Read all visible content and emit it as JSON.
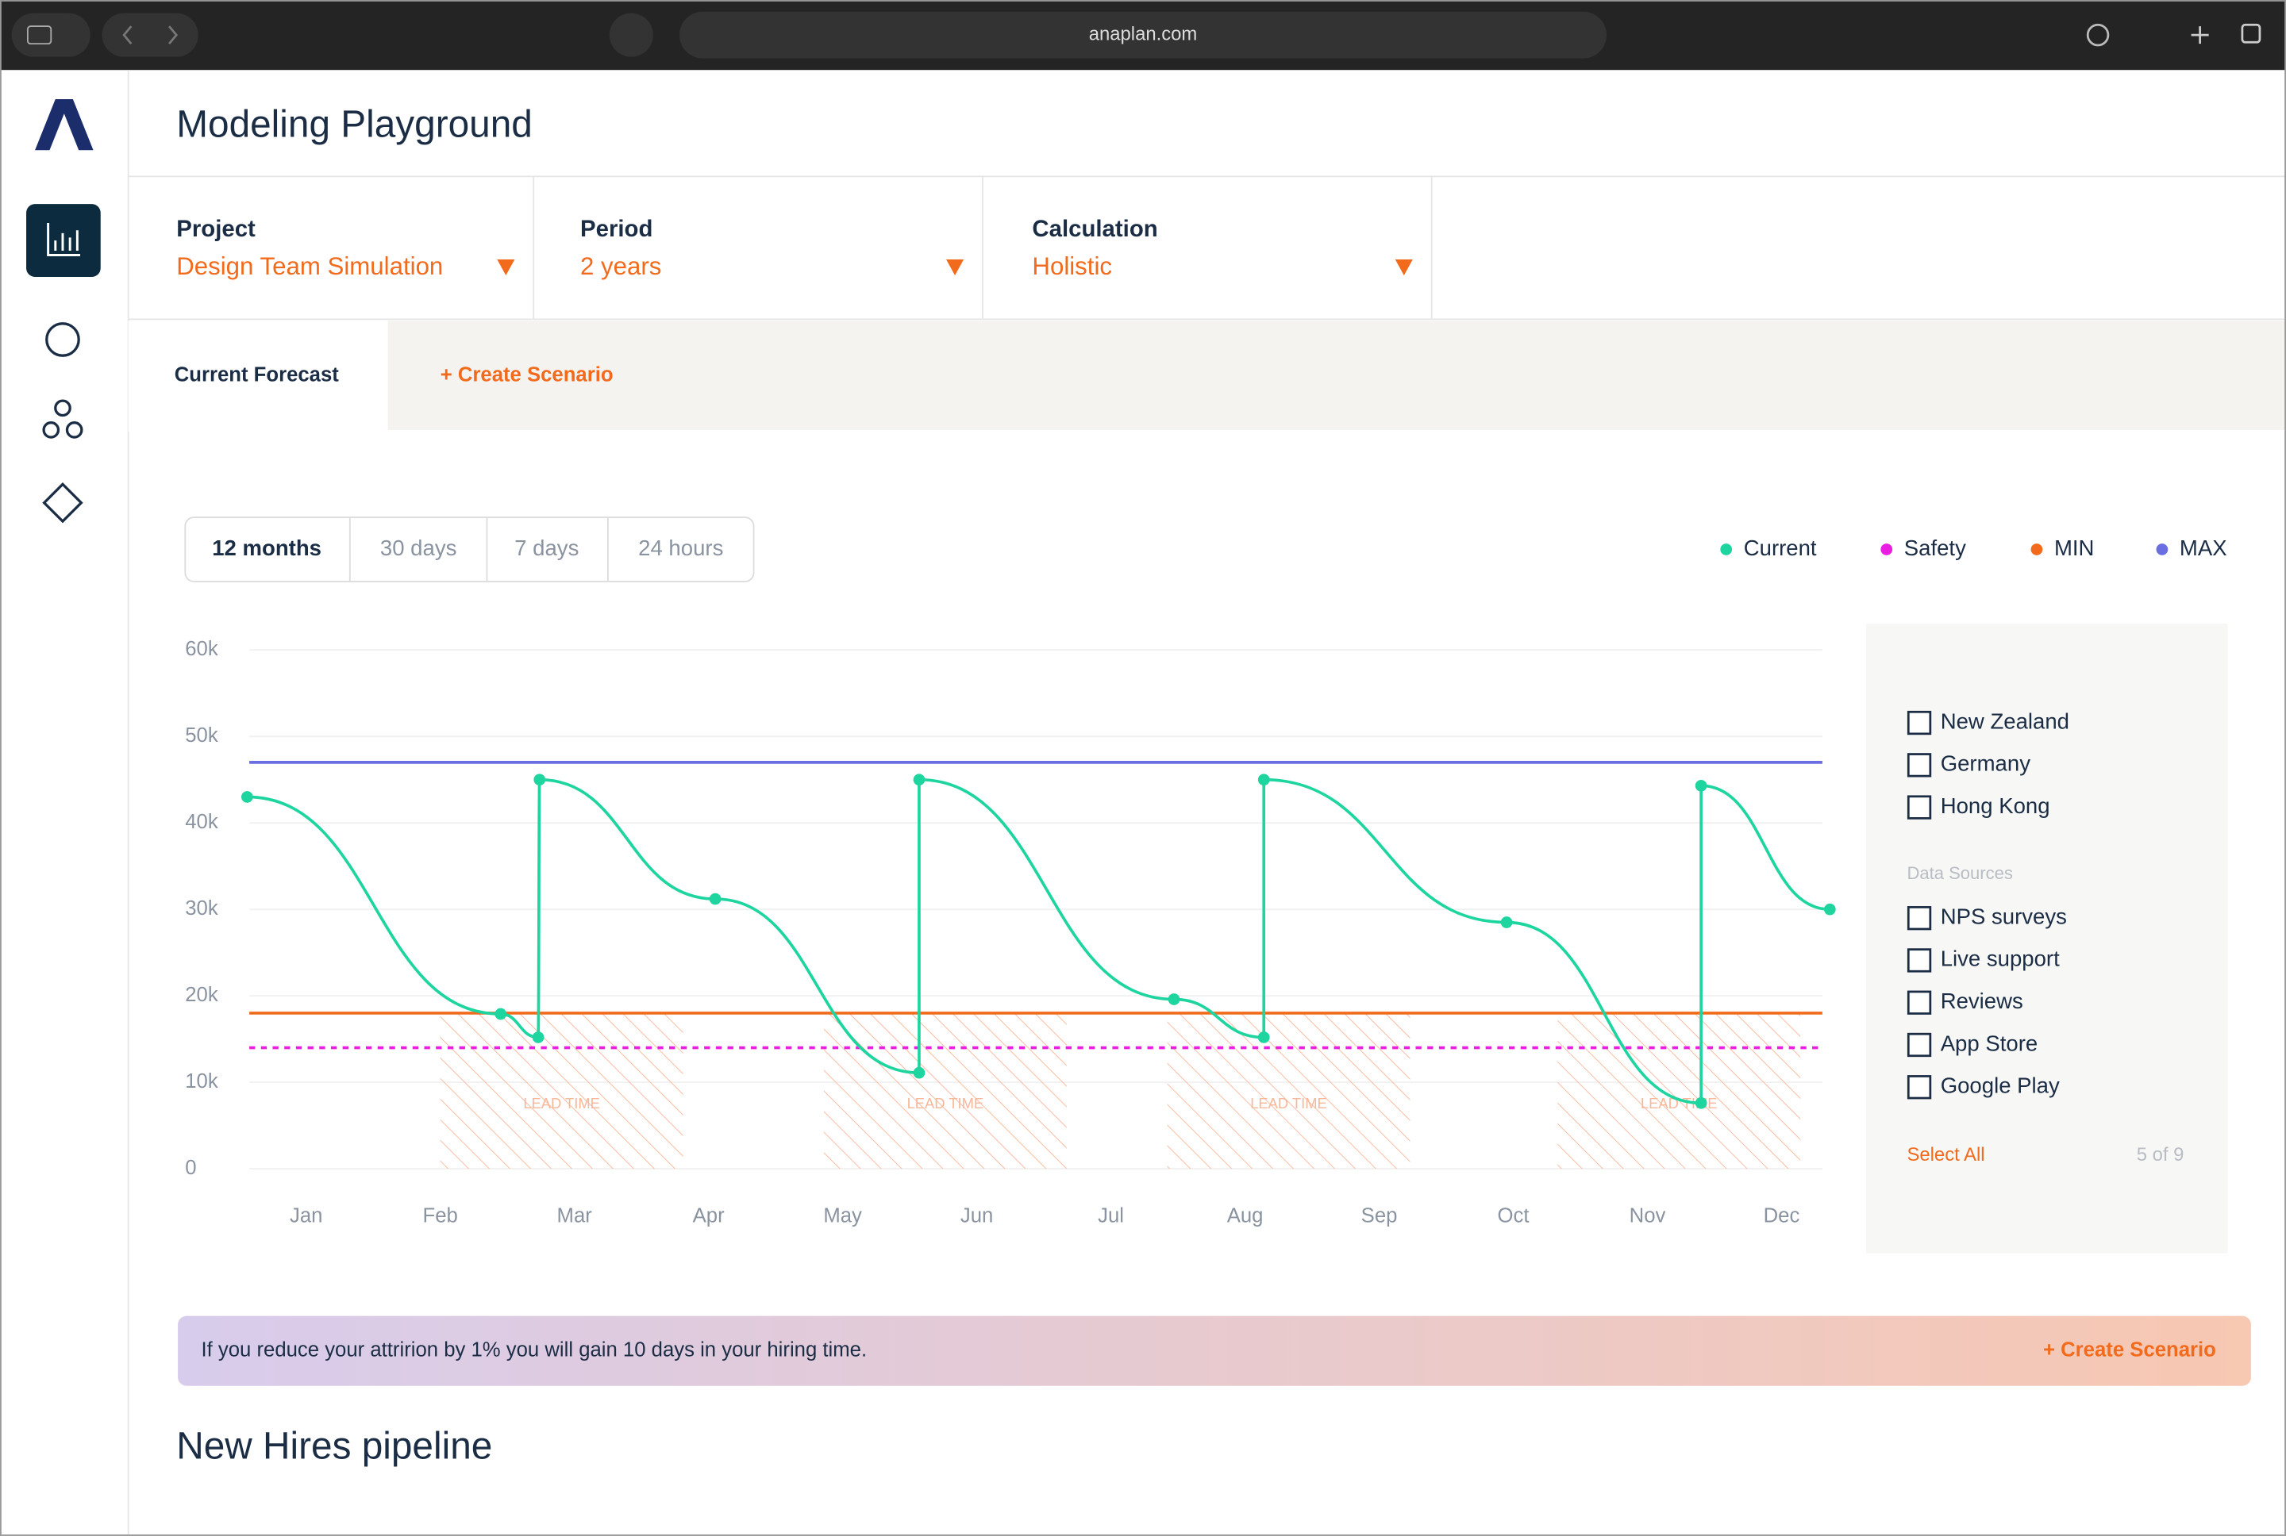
{
  "browser": {
    "url": "anaplan.com"
  },
  "app": {
    "title": "Modeling Playground"
  },
  "filters": [
    {
      "label": "Project",
      "value": "Design Team Simulation"
    },
    {
      "label": "Period",
      "value": "2 years"
    },
    {
      "label": "Calculation",
      "value": "Holistic"
    }
  ],
  "tabs": [
    "Current Forecast",
    "+ Create Scenario"
  ],
  "ranges": [
    "12 months",
    "30 days",
    "7 days",
    "24 hours"
  ],
  "chart_data": {
    "type": "line",
    "xlim": [
      -0.5,
      11.5
    ],
    "xticks": [
      {
        "value": 0,
        "label": "Jan"
      },
      {
        "value": 1,
        "label": "Feb"
      },
      {
        "value": 2,
        "label": "Mar"
      },
      {
        "value": 3,
        "label": "Apr"
      },
      {
        "value": 4,
        "label": "May"
      },
      {
        "value": 5,
        "label": "Jun"
      },
      {
        "value": 6,
        "label": "Jul"
      },
      {
        "value": 7,
        "label": "Aug"
      },
      {
        "value": 8,
        "label": "Sep"
      },
      {
        "value": 9,
        "label": "Oct"
      },
      {
        "value": 10,
        "label": "Nov"
      },
      {
        "value": 11,
        "label": "Dec"
      }
    ],
    "ylim": [
      0,
      60000
    ],
    "yticks": [
      {
        "value": 0,
        "label": "0"
      },
      {
        "value": 10000,
        "label": "10k"
      },
      {
        "value": 20000,
        "label": "20k"
      },
      {
        "value": 30000,
        "label": "30k"
      },
      {
        "value": 40000,
        "label": "40k"
      },
      {
        "value": 50000,
        "label": "50k"
      },
      {
        "value": 60000,
        "label": "60k"
      }
    ],
    "grid": true,
    "series": [
      {
        "name": "Current",
        "color": "#1ed5a0",
        "x": [
          -0.44,
          1.45,
          1.73,
          1.74,
          3.05,
          4.57,
          4.57,
          6.47,
          7.14,
          7.14,
          8.95,
          10.4,
          10.4,
          11.36
        ],
        "values": [
          43000,
          17900,
          15200,
          45000,
          31200,
          11100,
          45000,
          19600,
          15200,
          45000,
          28500,
          7600,
          44300,
          30000
        ]
      }
    ],
    "thresholds": [
      {
        "name": "Safety",
        "color": "#e91ee0",
        "value": 14000,
        "style": "dashed"
      },
      {
        "name": "MIN",
        "color": "#f26b1d",
        "value": 18000,
        "style": "solid"
      },
      {
        "name": "MAX",
        "color": "#6a6ee0",
        "value": 47000,
        "style": "solid"
      }
    ],
    "bands": [
      {
        "label": "LEAD TIME",
        "x": [
          1.0,
          2.81
        ],
        "y": [
          0,
          18000
        ]
      },
      {
        "label": "LEAD TIME",
        "x": [
          3.86,
          5.67
        ],
        "y": [
          0,
          18000
        ]
      },
      {
        "label": "LEAD TIME",
        "x": [
          6.42,
          8.23
        ],
        "y": [
          0,
          18000
        ]
      },
      {
        "label": "LEAD TIME",
        "x": [
          9.33,
          11.14
        ],
        "y": [
          0,
          18000
        ]
      }
    ]
  },
  "panel": {
    "regions": [
      "New Zealand",
      "Germany",
      "Hong Kong"
    ],
    "sources_title": "Data Sources",
    "sources": [
      "NPS surveys",
      "Live support",
      "Reviews",
      "App Store",
      "Google Play"
    ],
    "select_all": "Select All",
    "count": "5 of 9"
  },
  "banner": {
    "text": "If you reduce your attririon by 1% you will gain 10 days in your hiring time.",
    "action": "+ Create Scenario"
  },
  "pipeline": {
    "title": "New Hires pipeline"
  }
}
